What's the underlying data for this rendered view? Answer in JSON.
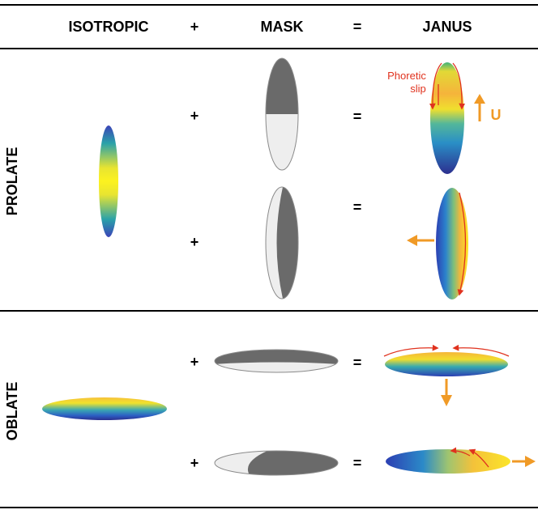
{
  "headers": {
    "isotropic": "ISOTROPIC",
    "plus": "+",
    "mask": "MASK",
    "equals": "=",
    "janus": "JANUS"
  },
  "rows": {
    "prolate": "PROLATE",
    "oblate": "OBLATE"
  },
  "operators": {
    "plus": "+",
    "equals": "="
  },
  "annotations": {
    "phoretic_line1": "Phoretic",
    "phoretic_line2": "slip",
    "velocity": "U"
  },
  "colors": {
    "slip_arrows": "#e0321e",
    "velocity_arrows": "#f09a26",
    "mask_dark": "#6a6a6a",
    "mask_light": "#eeeeee",
    "gradient_yellow": "#fde724",
    "gradient_orange": "#f4b63c",
    "gradient_teal": "#2aa2a9",
    "gradient_blue": "#2c3fb3"
  }
}
